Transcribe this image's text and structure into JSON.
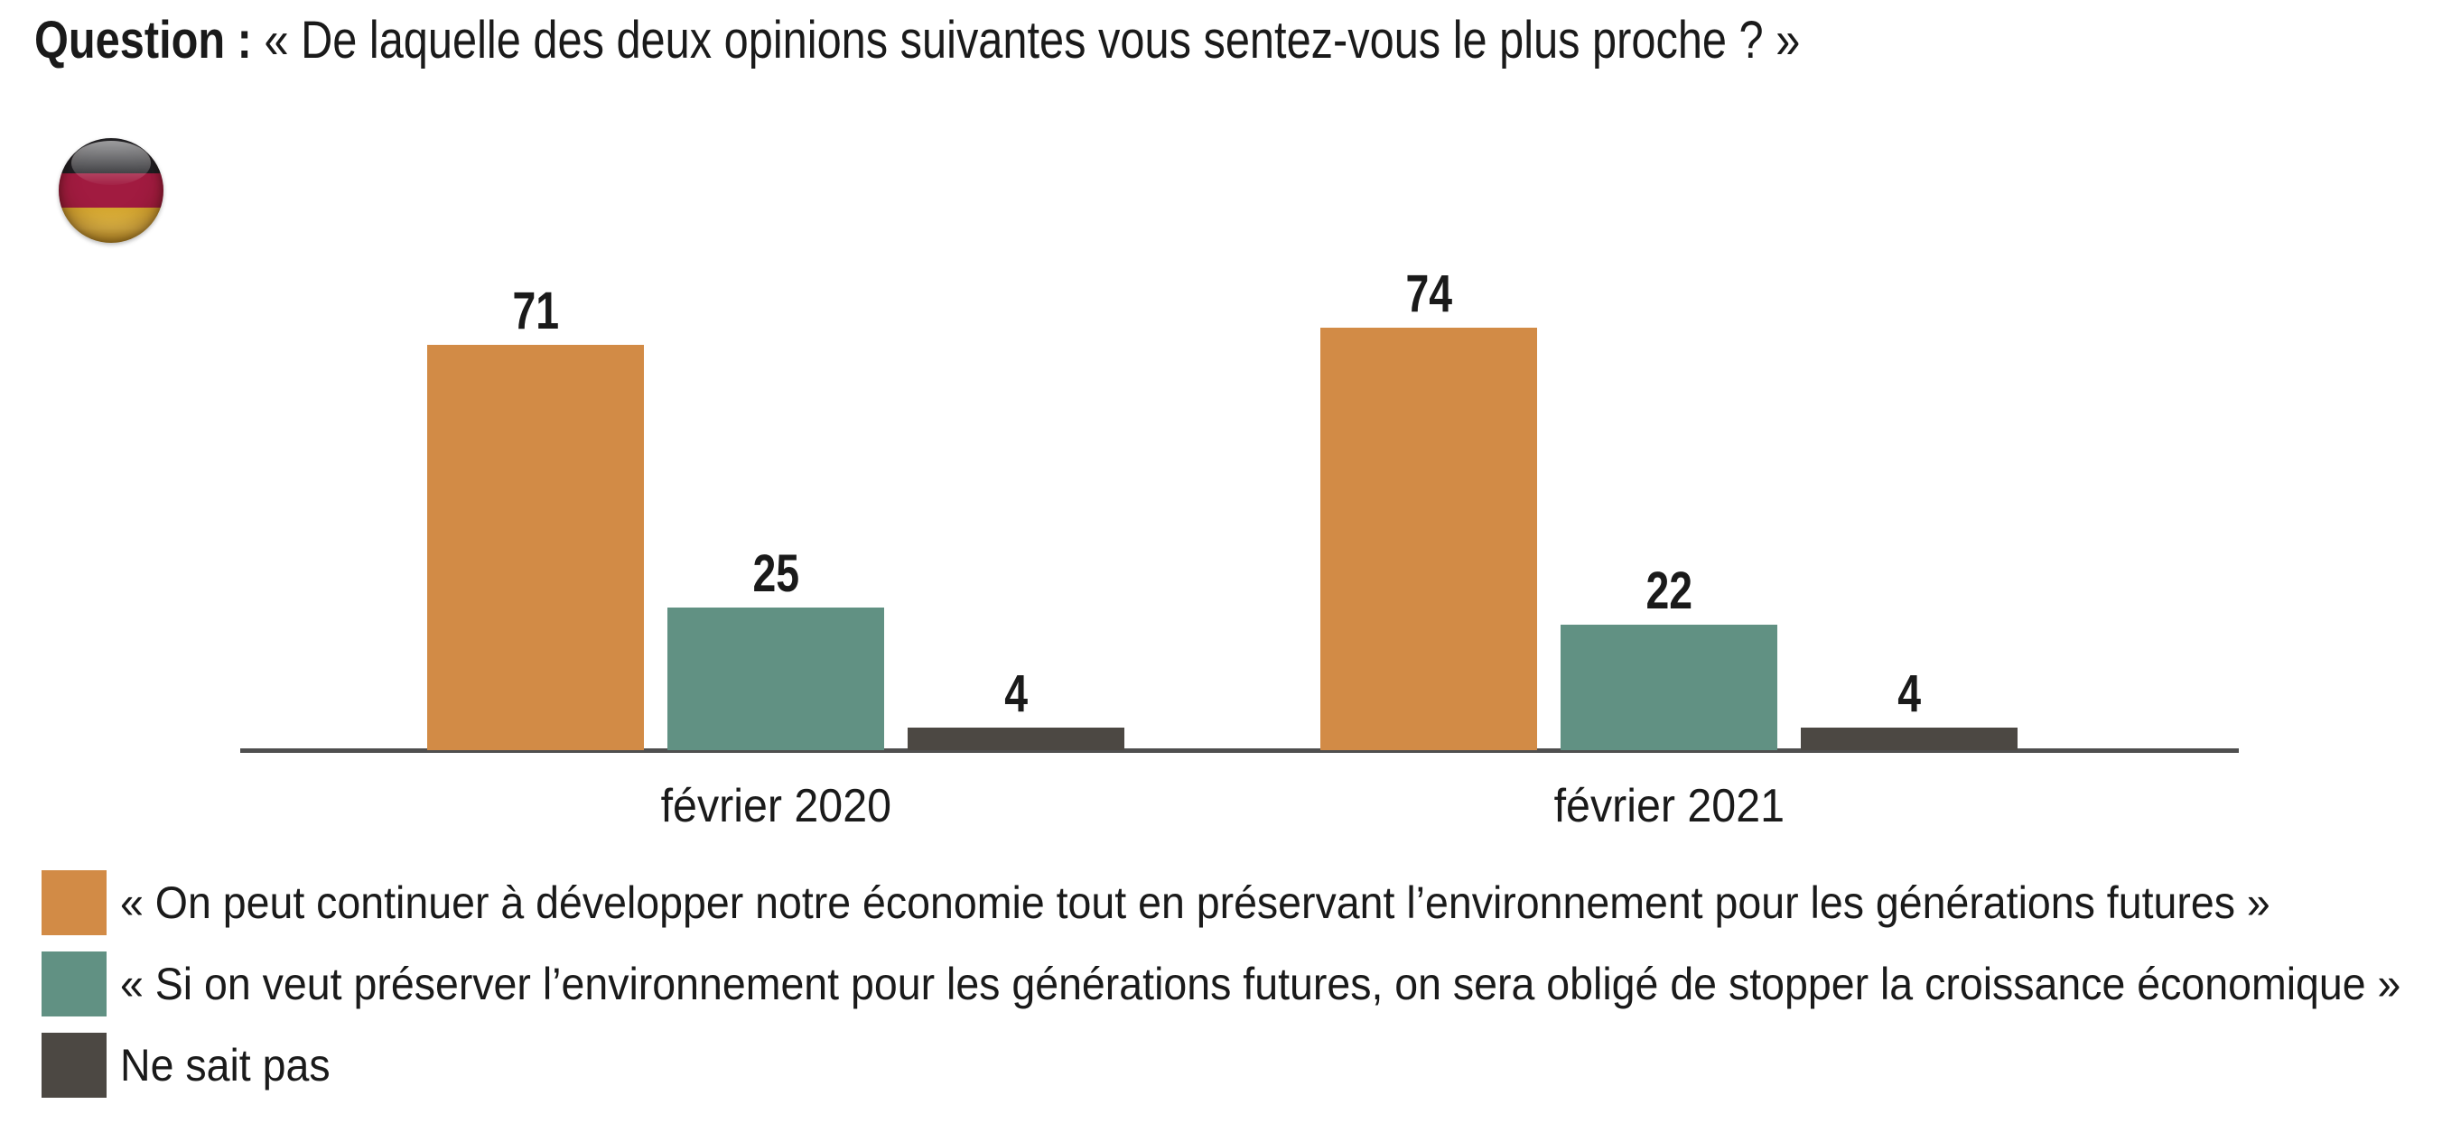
{
  "title": {
    "prefix": "Question :",
    "question": "« De laquelle des deux opinions suivantes vous sentez-vous le plus proche ? »"
  },
  "flag": {
    "country": "Allemagne",
    "icon": "germany-flag-icon",
    "colors": {
      "top": "#1d1d21",
      "middle": "#a11b40",
      "bottom": "#d5a62e"
    }
  },
  "chart_data": {
    "type": "bar",
    "categories": [
      "février 2020",
      "février 2021"
    ],
    "series": [
      {
        "name": "« On peut continuer à développer notre économie tout en préservant l’environnement pour les générations futures »",
        "color": "#d28b46",
        "values": [
          71,
          74
        ]
      },
      {
        "name": "« Si on veut préserver l’environnement pour les générations futures, on sera obligé de stopper la croissance économique »",
        "color": "#619183",
        "values": [
          25,
          22
        ]
      },
      {
        "name": "Ne sait pas",
        "color": "#4c4843",
        "values": [
          4,
          4
        ]
      }
    ],
    "ylim": [
      0,
      80
    ],
    "value_labels": true,
    "grid": false,
    "legend_position": "bottom-left",
    "axis_line_color": "#4f4f4f",
    "text_color": "#1a1a1a"
  }
}
